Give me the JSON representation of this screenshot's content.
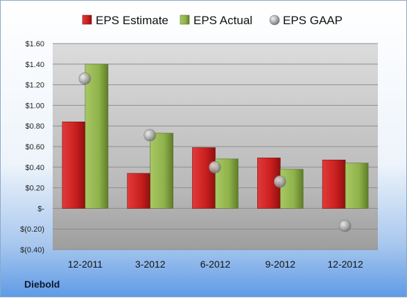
{
  "company": "Diebold",
  "chart_data": {
    "type": "bar",
    "title": "",
    "xlabel": "",
    "ylabel": "",
    "categories": [
      "12-2011",
      "3-2012",
      "6-2012",
      "9-2012",
      "12-2012"
    ],
    "series": [
      {
        "name": "EPS Estimate",
        "type": "bar",
        "color": "#c81e1e",
        "values": [
          0.84,
          0.34,
          0.59,
          0.49,
          0.47
        ]
      },
      {
        "name": "EPS Actual",
        "type": "bar",
        "color": "#8fb24a",
        "values": [
          1.4,
          0.73,
          0.48,
          0.38,
          0.44
        ]
      },
      {
        "name": "EPS GAAP",
        "type": "marker",
        "color": "#a8a8a8",
        "values": [
          1.26,
          0.71,
          0.4,
          0.26,
          -0.17
        ]
      }
    ],
    "ylim": [
      -0.4,
      1.6
    ],
    "yticks": [
      -0.4,
      -0.2,
      0,
      0.2,
      0.4,
      0.6,
      0.8,
      1.0,
      1.2,
      1.4,
      1.6
    ],
    "ytick_labels": [
      "$(0.40)",
      "$(0.20)",
      "$-",
      "$0.20",
      "$0.40",
      "$0.60",
      "$0.80",
      "$1.00",
      "$1.20",
      "$1.40",
      "$1.60"
    ],
    "grid": true,
    "legend": "top"
  }
}
